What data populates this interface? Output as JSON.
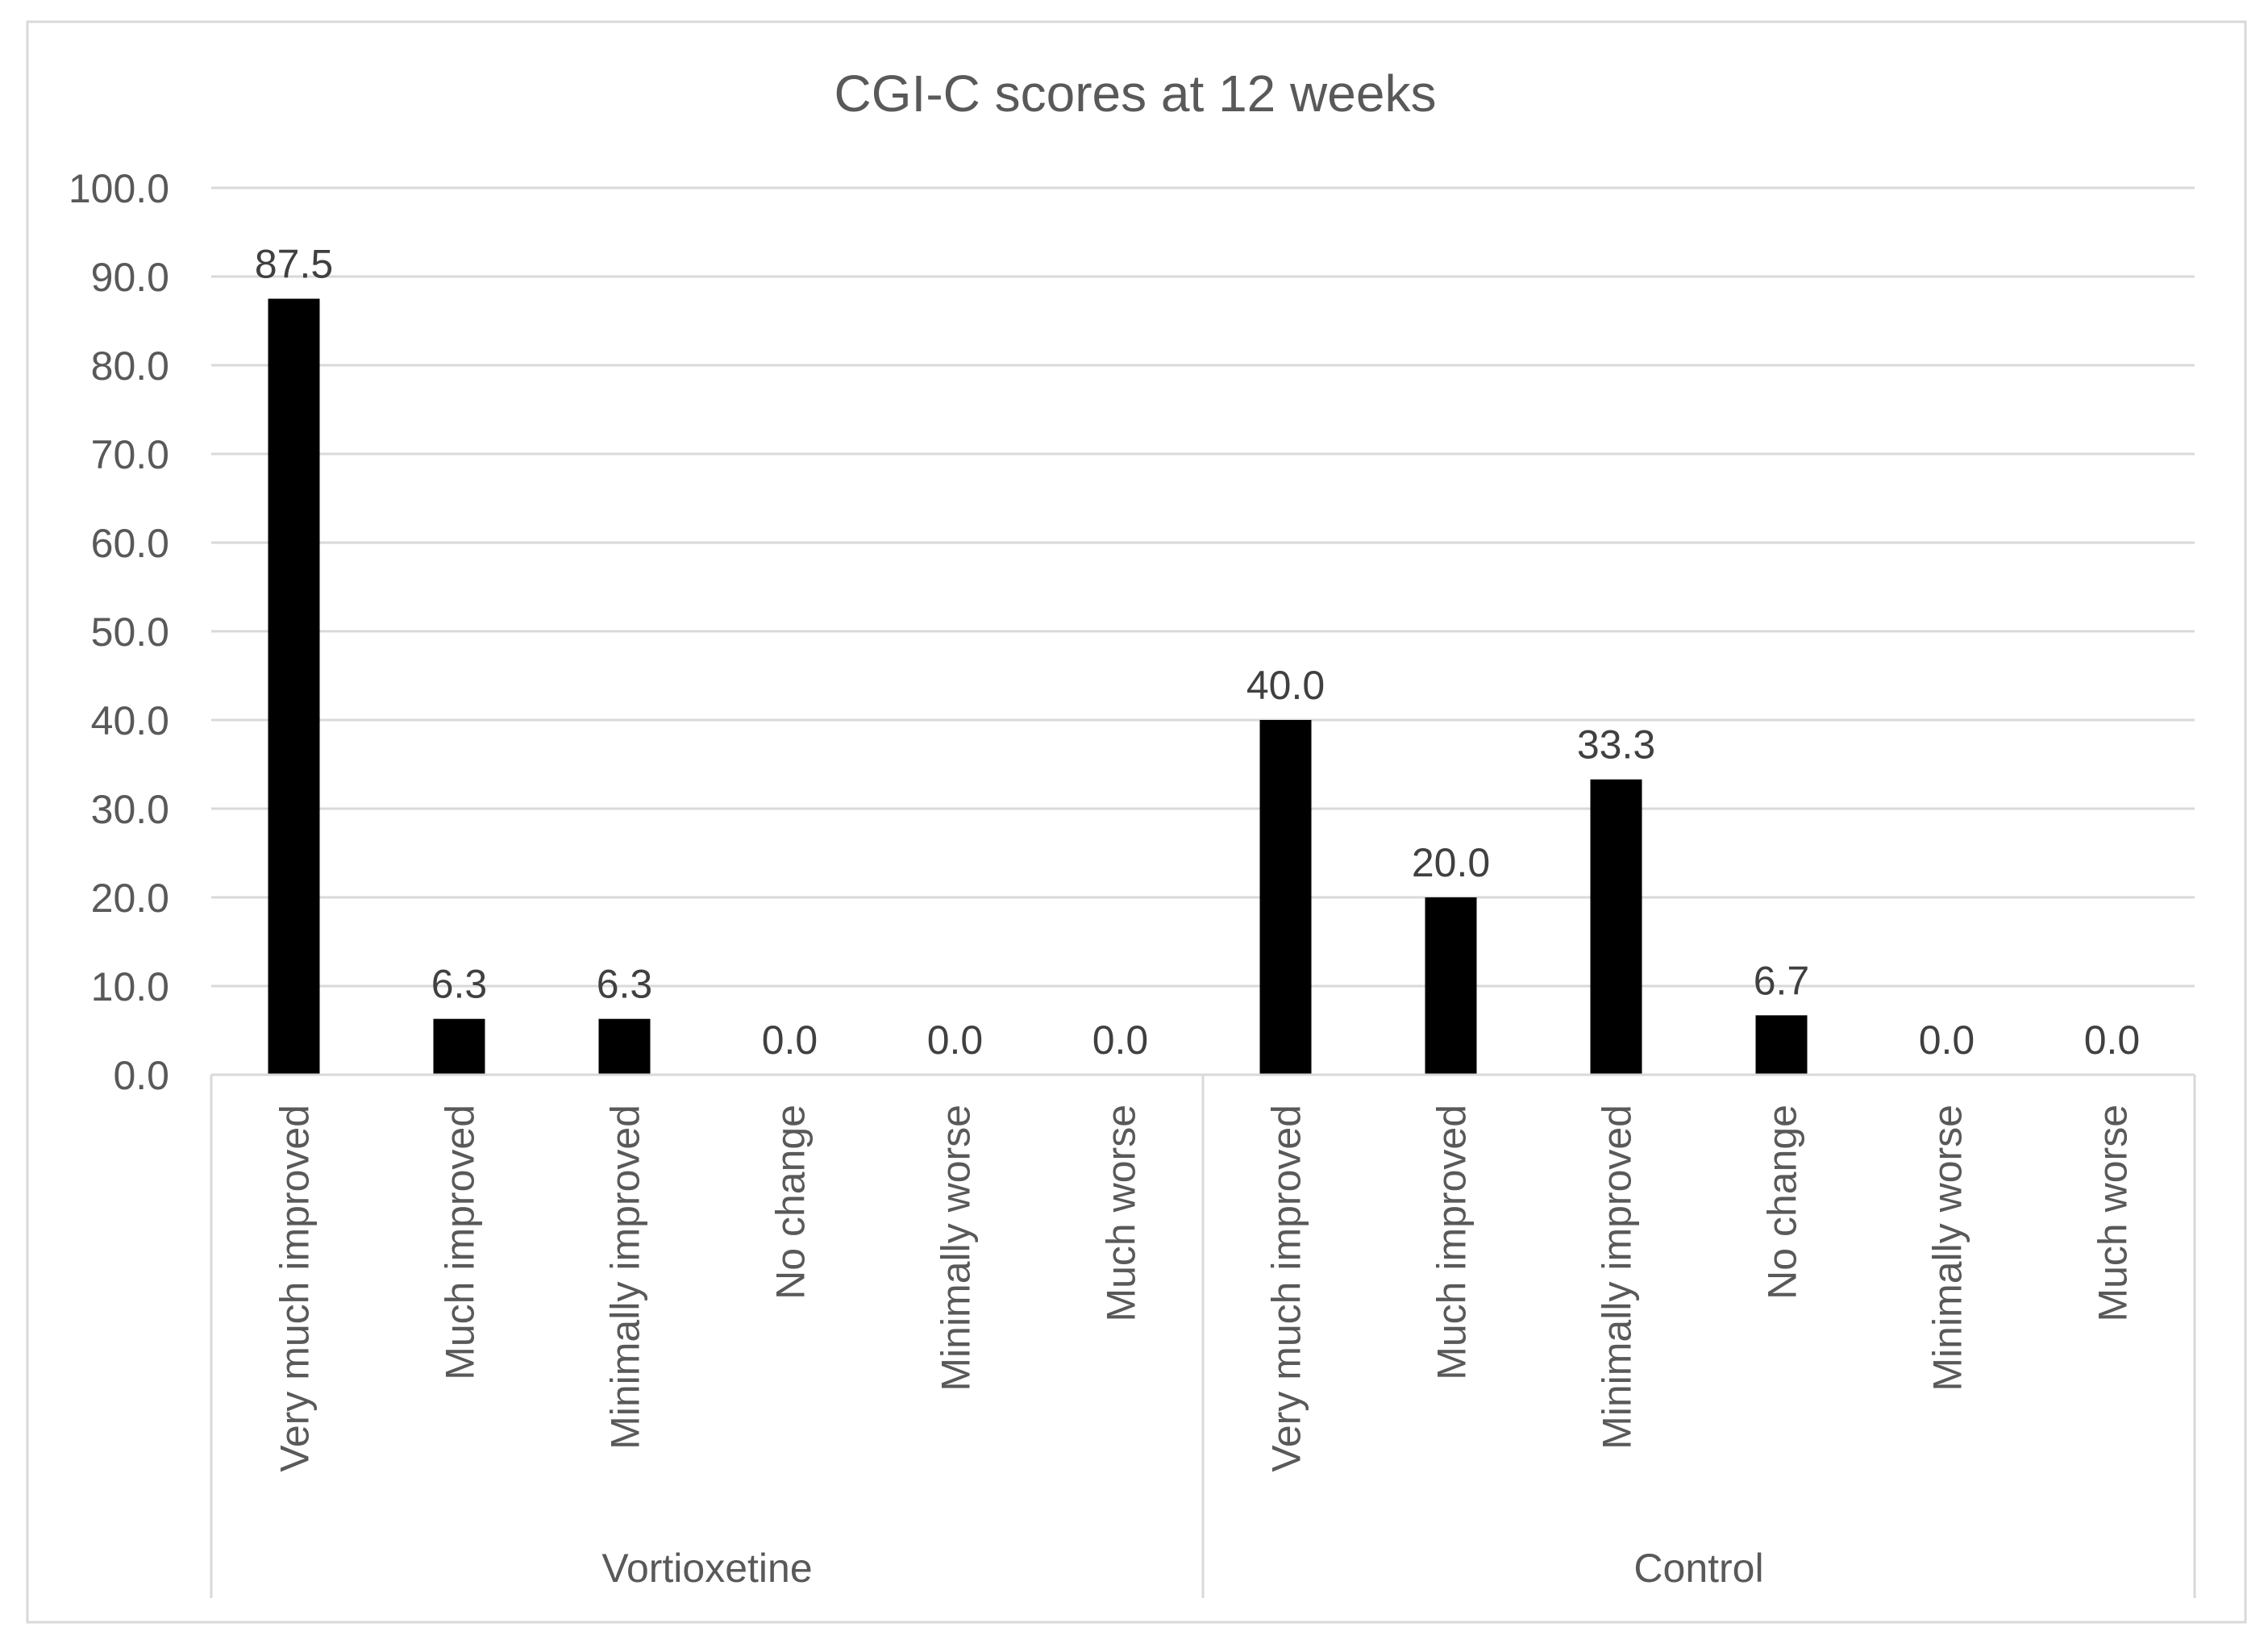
{
  "chart_data": {
    "type": "bar",
    "title": "CGI-C scores at 12 weeks",
    "ylim": [
      0,
      100
    ],
    "yticks": [
      "0.0",
      "10.0",
      "20.0",
      "30.0",
      "40.0",
      "50.0",
      "60.0",
      "70.0",
      "80.0",
      "90.0",
      "100.0"
    ],
    "xlabel": "",
    "ylabel": "",
    "grid": true,
    "legend": "none",
    "bar_color": "#000000",
    "groups": [
      {
        "name": "Vortioxetine",
        "categories": [
          "Very much improved",
          "Much improved",
          "Minimally improved",
          "No change",
          "Minimally worse",
          "Much worse"
        ],
        "values": [
          87.5,
          6.3,
          6.3,
          0.0,
          0.0,
          0.0
        ],
        "value_labels": [
          "87.5",
          "6.3",
          "6.3",
          "0.0",
          "0.0",
          "0.0"
        ]
      },
      {
        "name": "Control",
        "categories": [
          "Very much improved",
          "Much improved",
          "Minimally improved",
          "No change",
          "Minimally worse",
          "Much worse"
        ],
        "values": [
          40.0,
          20.0,
          33.3,
          6.7,
          0.0,
          0.0
        ],
        "value_labels": [
          "40.0",
          "20.0",
          "33.3",
          "6.7",
          "0.0",
          "0.0"
        ]
      }
    ]
  }
}
